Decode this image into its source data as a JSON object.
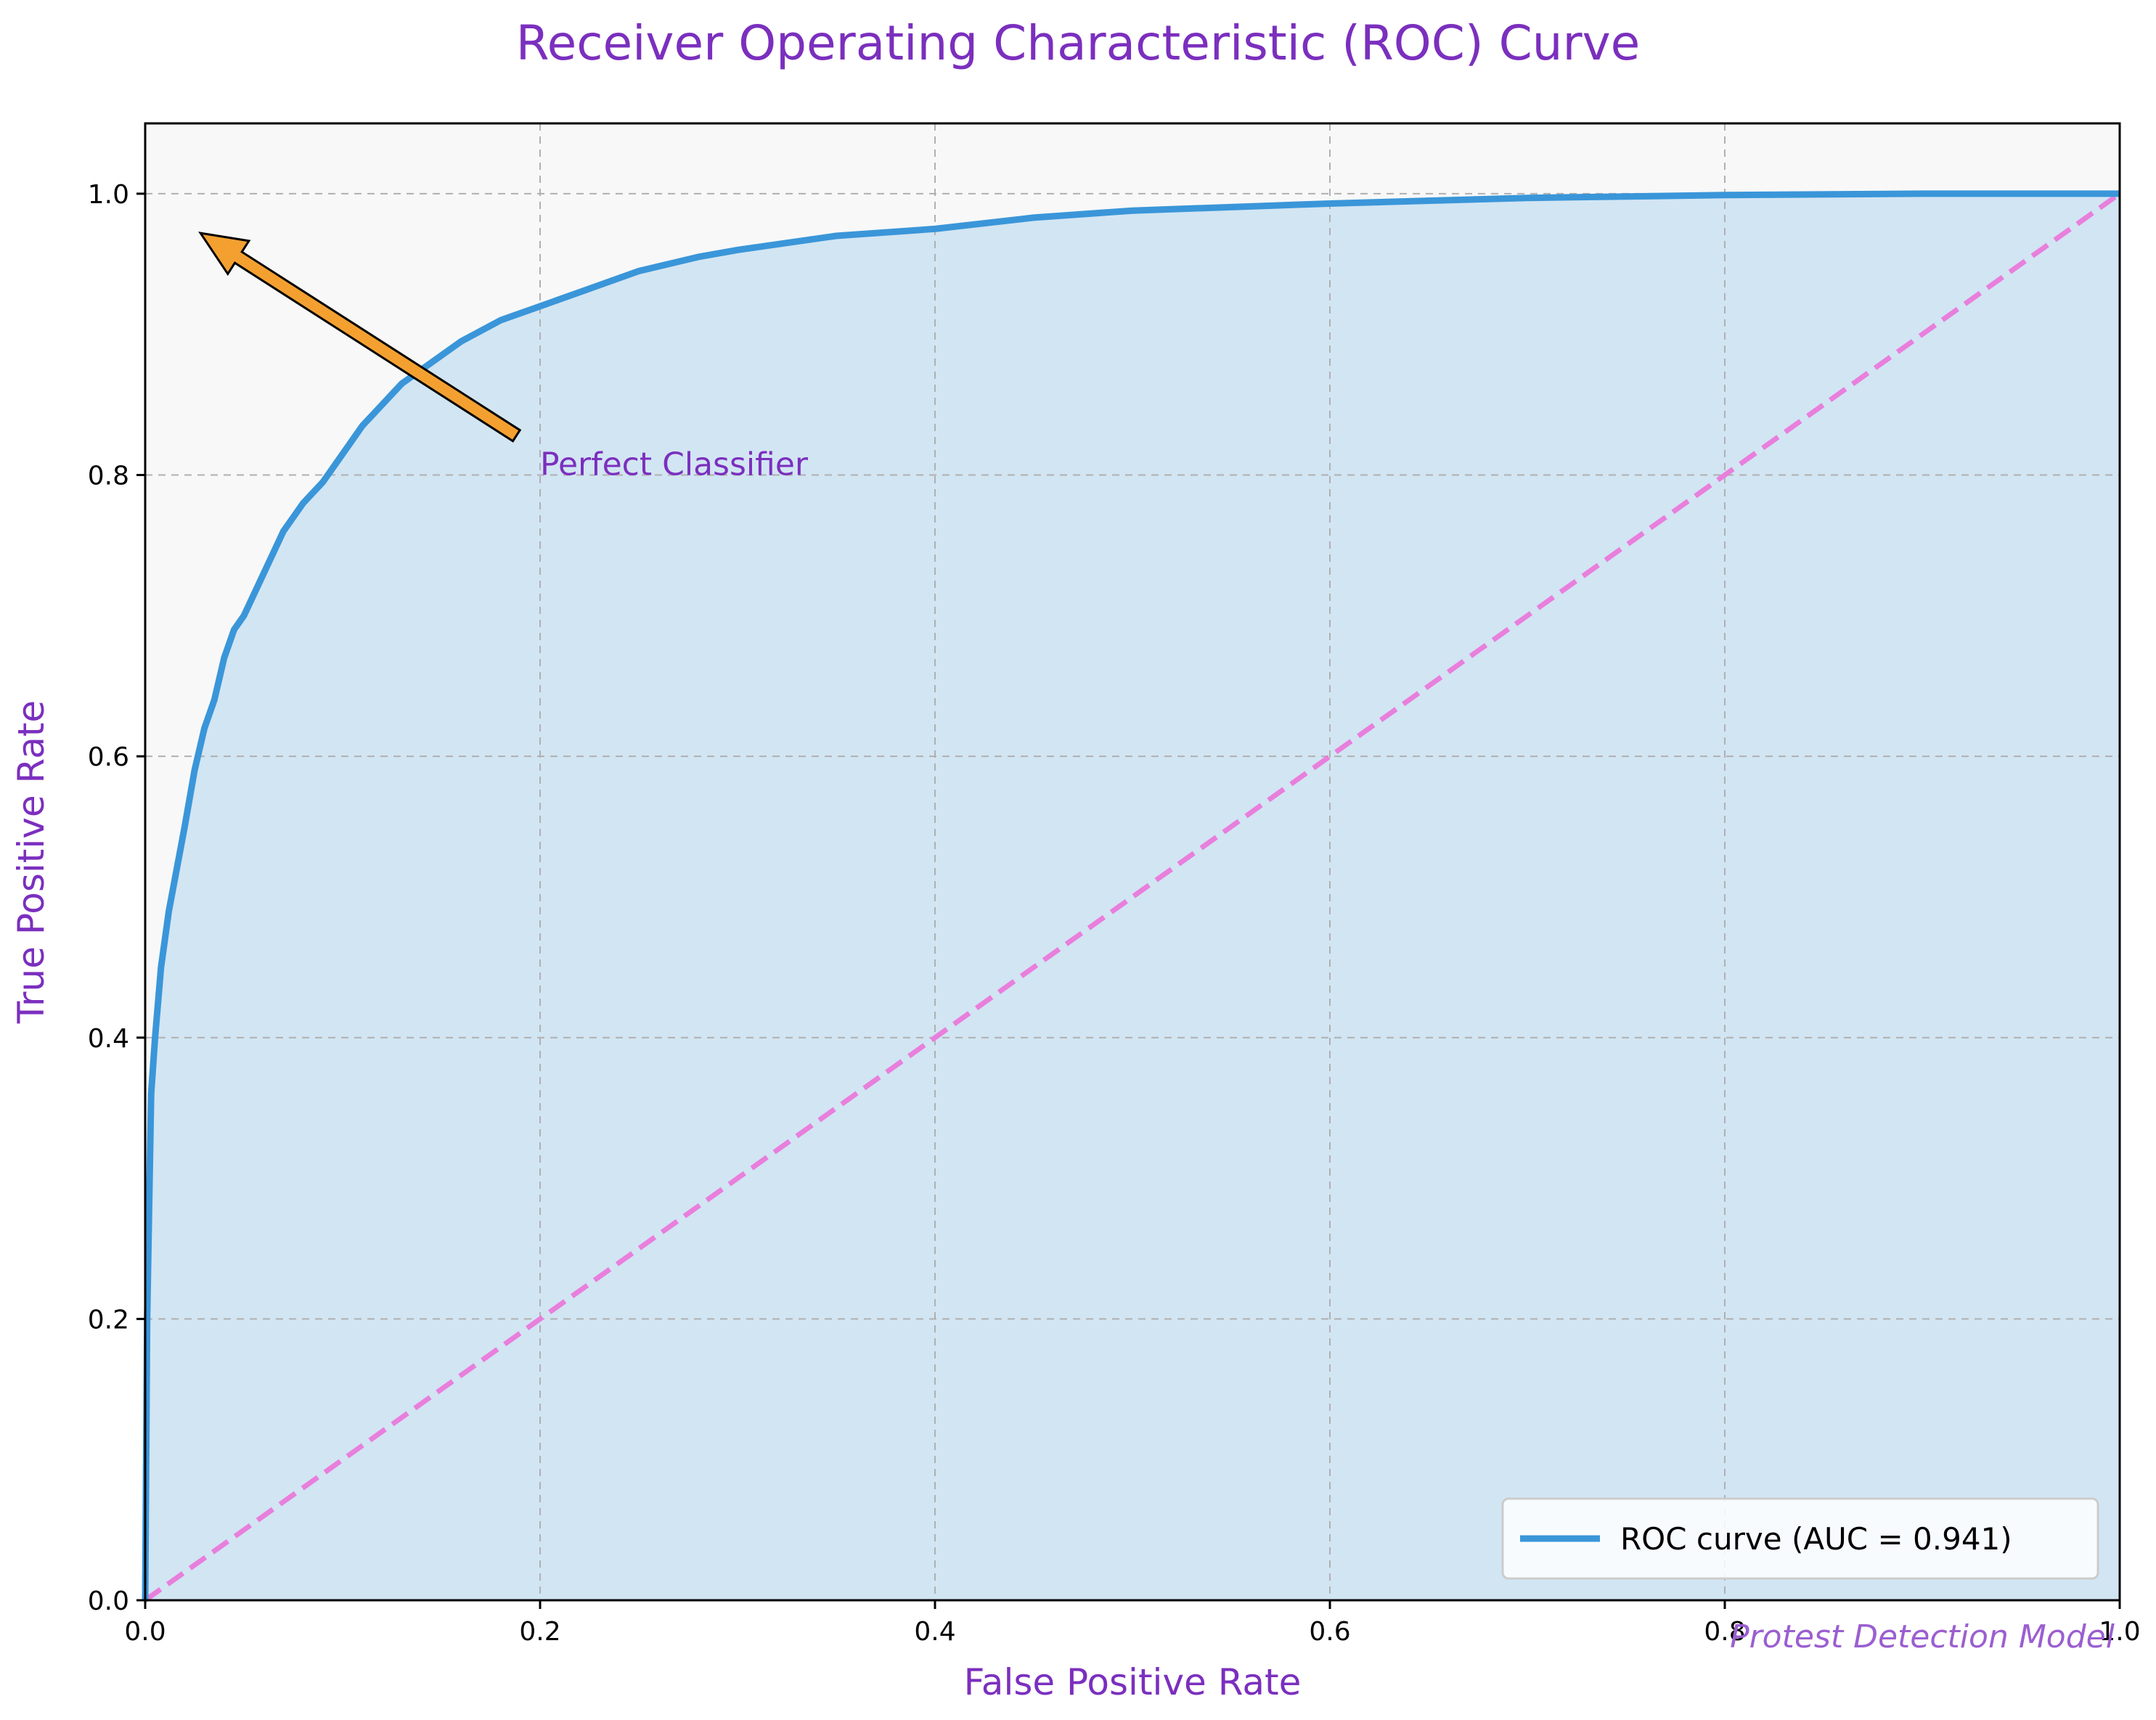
{
  "chart_data": {
    "type": "line",
    "title": "Receiver Operating Characteristic (ROC) Curve",
    "xlabel": "False Positive Rate",
    "ylabel": "True Positive Rate",
    "xlim": [
      0.0,
      1.0
    ],
    "ylim": [
      0.0,
      1.05
    ],
    "x_ticks": [
      "0.0",
      "0.2",
      "0.4",
      "0.6",
      "0.8",
      "1.0"
    ],
    "y_ticks": [
      "0.0",
      "0.2",
      "0.4",
      "0.6",
      "0.8",
      "1.0"
    ],
    "grid": true,
    "legend_position": "bottom-right",
    "series": [
      {
        "name": "ROC curve (AUC = 0.941)",
        "color": "#3a96d9",
        "fill_color": "#d2e5f3",
        "x": [
          0.0,
          0.001,
          0.003,
          0.005,
          0.008,
          0.012,
          0.016,
          0.02,
          0.025,
          0.03,
          0.035,
          0.04,
          0.045,
          0.05,
          0.06,
          0.07,
          0.08,
          0.09,
          0.1,
          0.11,
          0.12,
          0.13,
          0.14,
          0.15,
          0.16,
          0.18,
          0.2,
          0.22,
          0.25,
          0.28,
          0.3,
          0.35,
          0.4,
          0.45,
          0.5,
          0.6,
          0.7,
          0.8,
          0.9,
          1.0
        ],
        "y": [
          0.0,
          0.2,
          0.36,
          0.4,
          0.45,
          0.49,
          0.52,
          0.55,
          0.59,
          0.62,
          0.64,
          0.67,
          0.69,
          0.7,
          0.73,
          0.76,
          0.78,
          0.795,
          0.815,
          0.835,
          0.85,
          0.865,
          0.875,
          0.885,
          0.895,
          0.91,
          0.92,
          0.93,
          0.945,
          0.955,
          0.96,
          0.97,
          0.975,
          0.983,
          0.988,
          0.993,
          0.997,
          0.999,
          1.0,
          1.0
        ]
      },
      {
        "name": "",
        "color": "#e87fdc",
        "style": "dashed",
        "x": [
          0.0,
          1.0
        ],
        "y": [
          0.0,
          1.0
        ]
      }
    ],
    "annotations": [
      {
        "text": "Perfect Classifier",
        "text_xy": [
          0.2,
          0.8
        ],
        "arrow_from": [
          0.188,
          0.828
        ],
        "arrow_to": [
          0.028,
          0.972
        ],
        "arrow_color": "#f4a031"
      }
    ],
    "watermark": "Protest Detection Model"
  }
}
